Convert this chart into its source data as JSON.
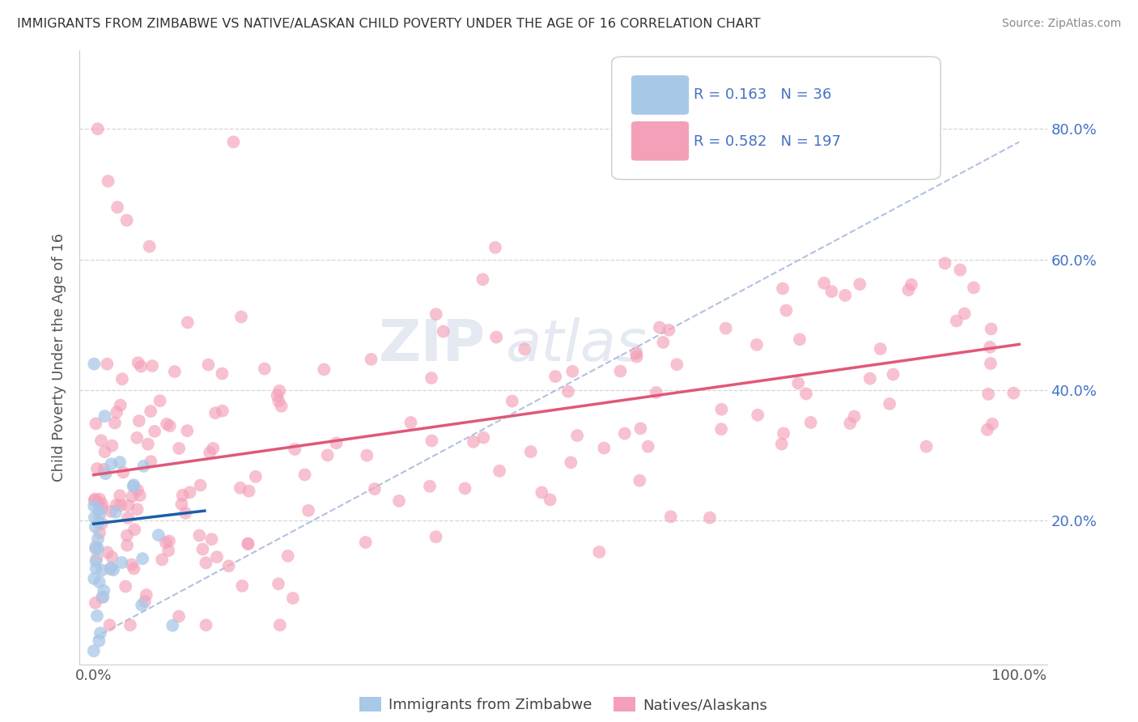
{
  "title": "IMMIGRANTS FROM ZIMBABWE VS NATIVE/ALASKAN CHILD POVERTY UNDER THE AGE OF 16 CORRELATION CHART",
  "source": "Source: ZipAtlas.com",
  "ylabel": "Child Poverty Under the Age of 16",
  "xlabel": "",
  "watermark_line1": "ZIP",
  "watermark_line2": "atlas",
  "legend": {
    "zimbabwe": {
      "R": 0.163,
      "N": 36,
      "color": "#a8c8e8",
      "label": "Immigrants from Zimbabwe"
    },
    "native": {
      "R": 0.582,
      "N": 197,
      "color": "#f4a0b8",
      "label": "Natives/Alaskans"
    }
  },
  "xlim": [
    0.0,
    1.0
  ],
  "ylim": [
    0.0,
    0.9
  ],
  "background_color": "#ffffff",
  "grid_color": "#cccccc",
  "scatter_blue_color": "#a8c8e8",
  "scatter_pink_color": "#f4a0b8",
  "line_blue_color": "#1a5fa8",
  "line_pink_color": "#e05878",
  "line_dashed_color": "#aabbdd",
  "label_color": "#4472c4",
  "title_color": "#333333",
  "source_color": "#888888",
  "ylabel_color": "#555555",
  "tick_color": "#555555"
}
